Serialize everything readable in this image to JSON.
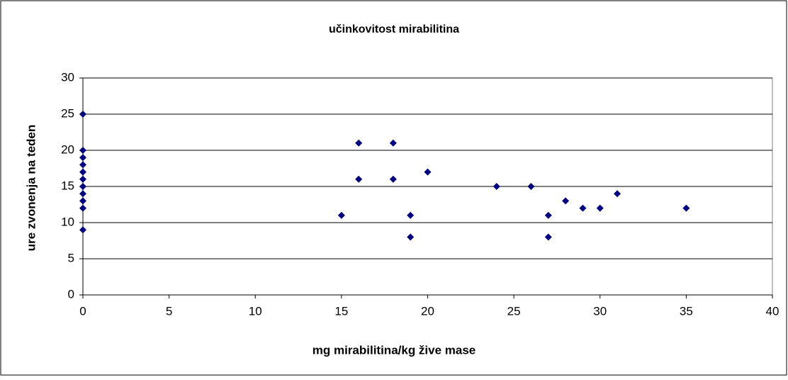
{
  "chart_data": {
    "type": "scatter",
    "title": "učinkovitost mirabilitina",
    "x_label": "mg mirabilitina/kg žive mase",
    "y_label": "ure zvonenja na teden",
    "x": [
      0,
      0,
      0,
      0,
      0,
      0,
      0,
      0,
      0,
      0,
      0,
      15,
      16,
      16,
      18,
      18,
      19,
      19,
      20,
      24,
      26,
      27,
      27,
      28,
      29,
      30,
      31,
      35
    ],
    "y": [
      25,
      20,
      19,
      18,
      17,
      16,
      15,
      14,
      13,
      12,
      9,
      11,
      21,
      16,
      21,
      16,
      11,
      8,
      17,
      15,
      15,
      11,
      8,
      13,
      12,
      12,
      14,
      12
    ],
    "color": "#000080",
    "xlim": [
      0,
      40
    ],
    "xticks": [
      0,
      5,
      10,
      15,
      20,
      25,
      30,
      35,
      40
    ],
    "ylim": [
      0,
      30
    ],
    "yticks": [
      0,
      5,
      10,
      15,
      20,
      25,
      30
    ],
    "grid": true
  }
}
